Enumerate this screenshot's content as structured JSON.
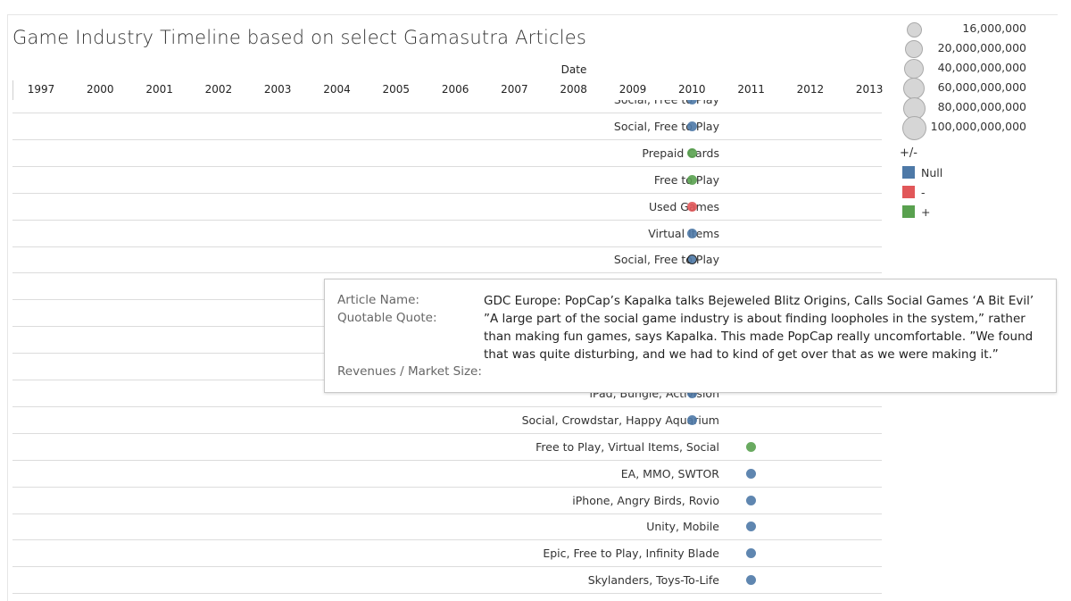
{
  "title": "Game Industry Timeline based on select Gamasutra Articles",
  "chart_data": {
    "type": "scatter",
    "x_axis_label": "Date",
    "x_ticks": [
      "1997",
      "2000",
      "2001",
      "2002",
      "2003",
      "2004",
      "2005",
      "2006",
      "2007",
      "2008",
      "2009",
      "2010",
      "2011",
      "2012",
      "2013"
    ],
    "rows": [
      {
        "label": "Social, Free to Play",
        "year": 2010,
        "sign": "Null",
        "partial": true
      },
      {
        "label": "Social, Free to Play",
        "year": 2010,
        "sign": "Null"
      },
      {
        "label": "Prepaid Cards",
        "year": 2010,
        "sign": "+"
      },
      {
        "label": "Free to Play",
        "year": 2010,
        "sign": "+"
      },
      {
        "label": "Used Games",
        "year": 2010,
        "sign": "-"
      },
      {
        "label": "Virtual Items",
        "year": 2010,
        "sign": "Null"
      },
      {
        "label": "Social, Free to Play",
        "year": 2010,
        "sign": "Null",
        "selected": true
      },
      {
        "label": "",
        "year": null,
        "sign": "Null"
      },
      {
        "label": "",
        "year": null,
        "sign": "Null"
      },
      {
        "label": "",
        "year": null,
        "sign": "Null"
      },
      {
        "label": "",
        "year": null,
        "sign": "Null"
      },
      {
        "label": "iPad, Bungie, Activision",
        "year": 2010,
        "sign": "Null"
      },
      {
        "label": "Social, Crowdstar, Happy Aquarium",
        "year": 2010,
        "sign": "Null"
      },
      {
        "label": "Free to Play, Virtual Items, Social",
        "year": 2011,
        "sign": "+"
      },
      {
        "label": "EA, MMO, SWTOR",
        "year": 2011,
        "sign": "Null"
      },
      {
        "label": "iPhone, Angry Birds, Rovio",
        "year": 2011,
        "sign": "Null"
      },
      {
        "label": "Unity, Mobile",
        "year": 2011,
        "sign": "Null"
      },
      {
        "label": "Epic, Free to Play, Infinity Blade",
        "year": 2011,
        "sign": "Null"
      },
      {
        "label": "Skylanders, Toys-To-Life",
        "year": 2011,
        "sign": "Null"
      }
    ]
  },
  "legend": {
    "size_labels": [
      "16,000,000",
      "20,000,000,000",
      "40,000,000,000",
      "60,000,000,000",
      "80,000,000,000",
      "100,000,000,000"
    ],
    "color_title": "+/-",
    "color_items": [
      {
        "label": "Null",
        "color": "#4e79a7"
      },
      {
        "label": "-",
        "color": "#e15759"
      },
      {
        "label": "+",
        "color": "#59a14f"
      }
    ]
  },
  "tooltip": {
    "article_key": "Article Name:",
    "article_value": "GDC Europe: PopCap’s Kapalka talks Bejeweled Blitz Origins, Calls Social Games ‘A Bit Evil’",
    "quote_key": "Quotable Quote:",
    "quote_value": "”A large part of the social game industry is about finding loopholes in the system,” rather than making fun games, says Kapalka. This made PopCap really uncomfortable. ”We found that was quite disturbing, and we had to kind of get over that as we were making it.”",
    "revenue_key": "Revenues / Market Size:",
    "revenue_value": ""
  }
}
